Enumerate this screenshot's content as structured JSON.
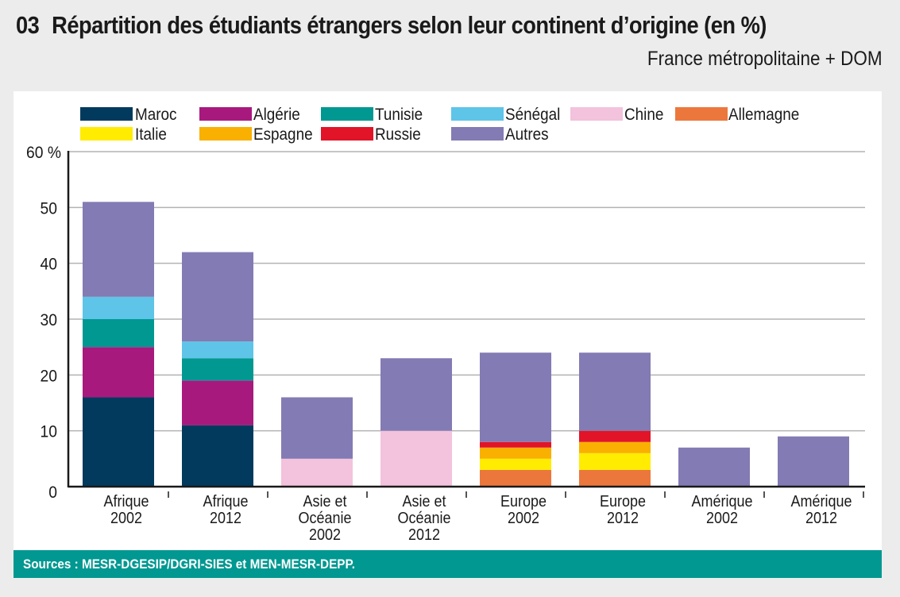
{
  "header": {
    "number": "03",
    "title": "Répartition des étudiants étrangers selon leur continent d’origine (en %)",
    "subtitle": "France métropolitaine + DOM"
  },
  "footer": {
    "sources": "Sources : MESR-DGESIP/DGRI-SIES et MEN-MESR-DEPP."
  },
  "chart_data": {
    "type": "bar",
    "stacked": true,
    "title": "Répartition des étudiants étrangers selon leur continent d’origine (en %)",
    "subtitle": "France métropolitaine + DOM",
    "xlabel": "",
    "ylabel": "%",
    "ylim": [
      0,
      60
    ],
    "yticks": [
      0,
      10,
      20,
      30,
      40,
      50,
      60
    ],
    "ytick_labels": [
      "0",
      "10",
      "20",
      "30",
      "40",
      "50",
      "60 %"
    ],
    "grid": true,
    "legend_position": "top",
    "categories": [
      [
        "Afrique",
        "2002"
      ],
      [
        "Afrique",
        "2012"
      ],
      [
        "Asie et",
        "Océanie",
        "2002"
      ],
      [
        "Asie et",
        "Océanie",
        "2012"
      ],
      [
        "Europe",
        "2002"
      ],
      [
        "Europe",
        "2012"
      ],
      [
        "Amérique",
        "2002"
      ],
      [
        "Amérique",
        "2012"
      ]
    ],
    "legend_order": [
      "Maroc",
      "Algérie",
      "Tunisie",
      "Sénégal",
      "Chine",
      "Allemagne",
      "Italie",
      "Espagne",
      "Russie",
      "Autres"
    ],
    "series": [
      {
        "name": "Maroc",
        "color": "#023a5e",
        "values": [
          16,
          11,
          0,
          0,
          0,
          0,
          0,
          0
        ]
      },
      {
        "name": "Algérie",
        "color": "#a8197e",
        "values": [
          9,
          8,
          0,
          0,
          0,
          0,
          0,
          0
        ]
      },
      {
        "name": "Tunisie",
        "color": "#009891",
        "values": [
          5,
          4,
          0,
          0,
          0,
          0,
          0,
          0
        ]
      },
      {
        "name": "Sénégal",
        "color": "#5ec4e8",
        "values": [
          4,
          3,
          0,
          0,
          0,
          0,
          0,
          0
        ]
      },
      {
        "name": "Chine",
        "color": "#f3c2dc",
        "values": [
          0,
          0,
          5,
          10,
          0,
          0,
          0,
          0
        ]
      },
      {
        "name": "Allemagne",
        "color": "#ec773c",
        "values": [
          0,
          0,
          0,
          0,
          3,
          3,
          0,
          0
        ]
      },
      {
        "name": "Italie",
        "color": "#ffec00",
        "values": [
          0,
          0,
          0,
          0,
          2,
          3,
          0,
          0
        ]
      },
      {
        "name": "Espagne",
        "color": "#f9b000",
        "values": [
          0,
          0,
          0,
          0,
          2,
          2,
          0,
          0
        ]
      },
      {
        "name": "Russie",
        "color": "#e11428",
        "values": [
          0,
          0,
          0,
          0,
          1,
          2,
          0,
          0
        ]
      },
      {
        "name": "Autres",
        "color": "#837bb3",
        "values": [
          17,
          16,
          11,
          13,
          16,
          14,
          7,
          9
        ]
      }
    ],
    "totals": [
      51,
      42,
      16,
      23,
      24,
      24,
      7,
      9
    ]
  }
}
